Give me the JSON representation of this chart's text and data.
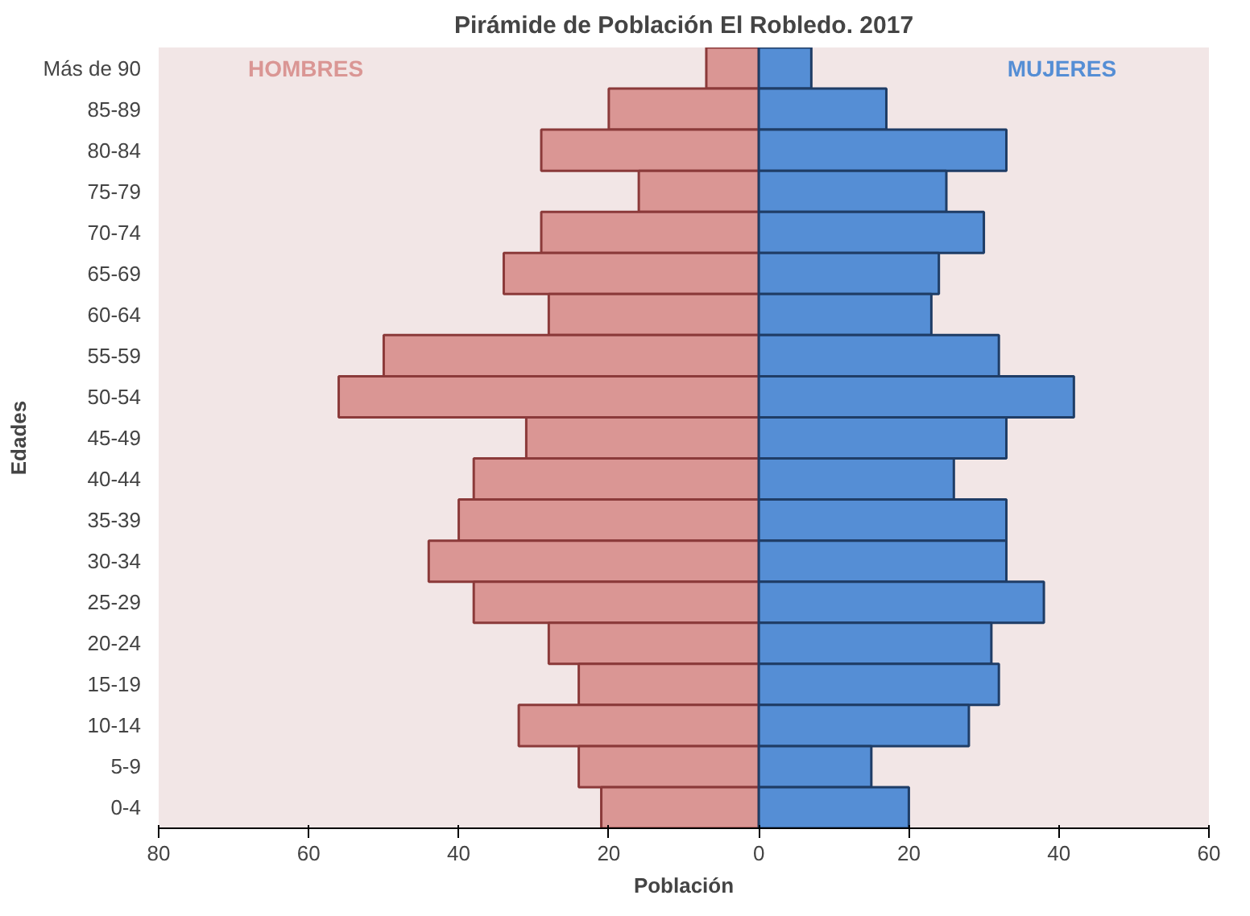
{
  "chart_data": {
    "type": "bar",
    "orientation": "horizontal",
    "stacked": true,
    "title": "Pirámide de Población El Robledo. 2017",
    "xlabel": "Población",
    "ylabel": "Edades",
    "categories": [
      "Más de 90",
      "85-89",
      "80-84",
      "75-79",
      "70-74",
      "65-69",
      "60-64",
      "55-59",
      "50-54",
      "45-49",
      "40-44",
      "35-39",
      "30-34",
      "25-29",
      "20-24",
      "15-19",
      "10-14",
      "5-9",
      "0-4"
    ],
    "series": [
      {
        "name": "HOMBRES",
        "color": "#da9694",
        "values": [
          -7,
          -20,
          -29,
          -16,
          -29,
          -34,
          -28,
          -50,
          -56,
          -31,
          -38,
          -40,
          -44,
          -38,
          -28,
          -24,
          -32,
          -24,
          -21
        ]
      },
      {
        "name": "MUJERES",
        "color": "#558ed5",
        "values": [
          7,
          17,
          33,
          25,
          30,
          24,
          23,
          32,
          42,
          33,
          26,
          33,
          33,
          38,
          31,
          32,
          28,
          15,
          20
        ]
      }
    ],
    "xlim": [
      -80,
      60
    ],
    "xticks": [
      {
        "value": -80,
        "label": "80"
      },
      {
        "value": -60,
        "label": "60"
      },
      {
        "value": -40,
        "label": "40"
      },
      {
        "value": -20,
        "label": "20"
      },
      0,
      20,
      40,
      60
    ],
    "grid": false,
    "legend": false
  }
}
